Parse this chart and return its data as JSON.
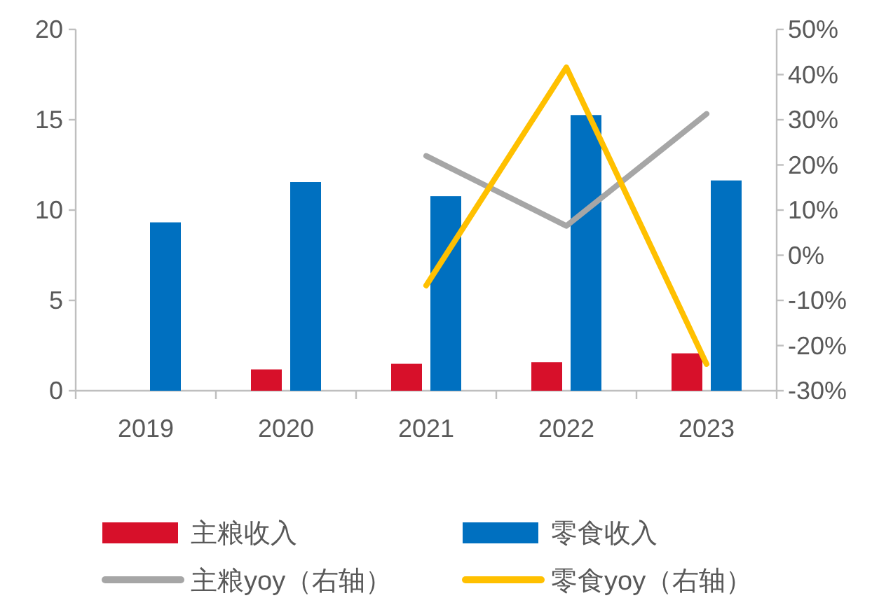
{
  "chart_data": {
    "type": "bar",
    "categories": [
      "2019",
      "2020",
      "2021",
      "2022",
      "2023"
    ],
    "series": [
      {
        "name": "主粮收入",
        "color": "#d7102a",
        "values": [
          null,
          1.18,
          1.49,
          1.58,
          2.07
        ]
      },
      {
        "name": "零食收入",
        "color": "#0070c0",
        "values": [
          9.32,
          11.55,
          10.77,
          15.26,
          11.64
        ]
      },
      {
        "name": "主粮yoy（右轴）",
        "type": "line",
        "axis": "y2",
        "color": "#a6a6a6",
        "values": [
          null,
          null,
          22.0,
          6.5,
          31.3
        ]
      },
      {
        "name": "零食yoy（右轴）",
        "type": "line",
        "axis": "y2",
        "color": "#ffc000",
        "values": [
          null,
          null,
          -6.7,
          41.6,
          -24.1
        ]
      }
    ],
    "ylim": [
      0,
      20
    ],
    "yticks": [
      0,
      5,
      10,
      15,
      20
    ],
    "y2lim": [
      -30,
      50
    ],
    "y2ticks": [
      {
        "value": -30,
        "label": "-30%"
      },
      {
        "value": -20,
        "label": "-20%"
      },
      {
        "value": -10,
        "label": "-10%"
      },
      {
        "value": 0,
        "label": "0%"
      },
      {
        "value": 10,
        "label": "10%"
      },
      {
        "value": 20,
        "label": "20%"
      },
      {
        "value": 30,
        "label": "30%"
      },
      {
        "value": 40,
        "label": "40%"
      },
      {
        "value": 50,
        "label": "50%"
      }
    ],
    "grid": false,
    "legend": "bottom",
    "marker": "none",
    "line_style": "solid"
  }
}
